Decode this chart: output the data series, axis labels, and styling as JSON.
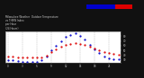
{
  "title": "Milwaukee Weather  Outdoor Temperature\nvs THSW Index\nper Hour\n(24 Hours)",
  "bg_color": "#111111",
  "plot_bg_color": "#ffffff",
  "hours": [
    0,
    1,
    2,
    3,
    4,
    5,
    6,
    7,
    8,
    9,
    10,
    11,
    12,
    13,
    14,
    15,
    16,
    17,
    18,
    19,
    20,
    21,
    22,
    23
  ],
  "temp_red": [
    38,
    37,
    36,
    36,
    35,
    35,
    35,
    36,
    40,
    46,
    52,
    57,
    61,
    64,
    65,
    64,
    62,
    58,
    54,
    50,
    47,
    44,
    42,
    41
  ],
  "thsw_blue": [
    30,
    29,
    28,
    27,
    26,
    26,
    27,
    30,
    38,
    50,
    60,
    70,
    78,
    83,
    85,
    80,
    72,
    62,
    52,
    44,
    38,
    34,
    32,
    31
  ],
  "ylim": [
    25,
    90
  ],
  "yticks": [
    30,
    40,
    50,
    60,
    70,
    80
  ],
  "xtick_step": 3,
  "grid_color": "#999999",
  "red_color": "#dd0000",
  "blue_color": "#0000cc",
  "title_color": "#cccccc",
  "tick_color": "#cccccc",
  "spine_color": "#555555",
  "markersize": 1.2
}
